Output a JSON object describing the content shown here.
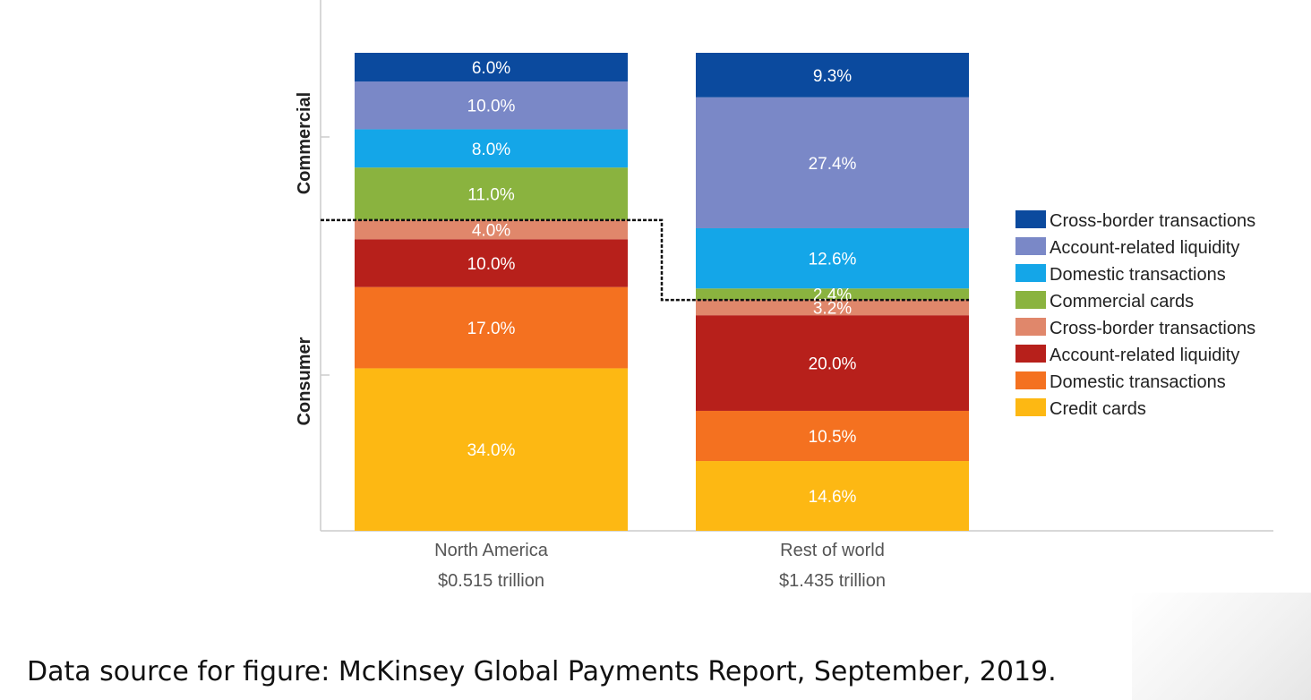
{
  "chart_data": {
    "type": "stacked-bar",
    "categories": [
      {
        "name": "North America",
        "total": "$0.515 trillion"
      },
      {
        "name": "Rest of world",
        "total": "$1.435 trillion"
      }
    ],
    "series": [
      {
        "name": "Credit cards",
        "group": "Consumer",
        "color": "#FDB813",
        "values": [
          34.0,
          14.6
        ]
      },
      {
        "name": "Domestic transactions",
        "group": "Consumer",
        "color": "#F47120",
        "values": [
          17.0,
          10.5
        ]
      },
      {
        "name": "Account-related liquidity",
        "group": "Consumer",
        "color": "#B7201B",
        "values": [
          10.0,
          20.0
        ]
      },
      {
        "name": "Cross-border transactions",
        "group": "Consumer",
        "color": "#E0876B",
        "values": [
          4.0,
          3.2
        ]
      },
      {
        "name": "Commercial cards",
        "group": "Commercial",
        "color": "#8AB33F",
        "values": [
          11.0,
          2.4
        ]
      },
      {
        "name": "Domestic transactions",
        "group": "Commercial",
        "color": "#14A6E8",
        "values": [
          8.0,
          12.6
        ]
      },
      {
        "name": "Account-related liquidity",
        "group": "Commercial",
        "color": "#7A88C7",
        "values": [
          10.0,
          27.4
        ]
      },
      {
        "name": "Cross-border transactions",
        "group": "Commercial",
        "color": "#0B4A9E",
        "values": [
          6.0,
          9.3
        ]
      }
    ],
    "groups": [
      "Commercial",
      "Consumer"
    ],
    "legend": {
      "position": "right",
      "order": "top-to-bottom"
    },
    "ylim": [
      0,
      100
    ],
    "grid": false
  },
  "footer": {
    "source": "Data source for figure: McKinsey Global Payments Report, September, 2019."
  }
}
